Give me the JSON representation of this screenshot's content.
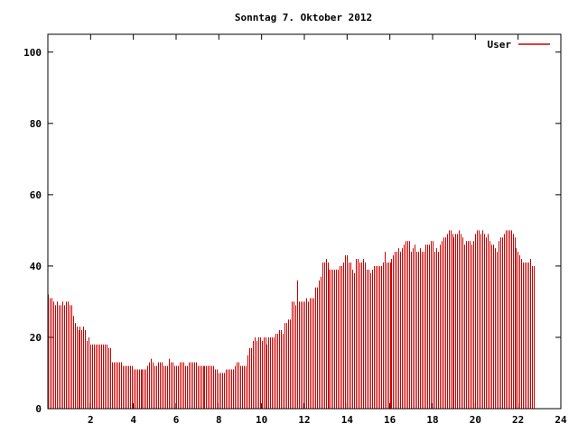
{
  "chart_data": {
    "type": "bar",
    "title": "Sonntag 7. Oktober 2012",
    "xlabel": "",
    "ylabel": "",
    "xlim": [
      0,
      24
    ],
    "ylim": [
      0,
      105
    ],
    "x_ticks": [
      2,
      4,
      6,
      8,
      10,
      12,
      14,
      16,
      18,
      20,
      22,
      24
    ],
    "y_ticks": [
      0,
      20,
      40,
      60,
      80,
      100
    ],
    "grid": false,
    "legend_position": "top-right",
    "series": [
      {
        "name": "User",
        "color": "#cc0000",
        "x_start": 0,
        "x_step": 0.0833,
        "values": [
          32,
          31,
          31,
          30,
          29,
          30,
          29,
          29,
          30,
          29,
          30,
          30,
          29,
          29,
          26,
          24,
          23,
          22,
          23,
          22,
          23,
          22,
          19,
          20,
          18,
          18,
          18,
          18,
          18,
          18,
          18,
          18,
          18,
          18,
          17,
          17,
          13,
          13,
          13,
          13,
          13,
          13,
          12,
          12,
          12,
          12,
          12,
          12,
          11,
          11,
          11,
          11,
          11,
          11,
          11,
          11,
          12,
          13,
          14,
          13,
          12,
          12,
          13,
          13,
          13,
          12,
          12,
          12,
          14,
          13,
          13,
          12,
          12,
          12,
          13,
          13,
          13,
          12,
          12,
          13,
          13,
          13,
          13,
          13,
          12,
          12,
          12,
          12,
          12,
          12,
          12,
          12,
          12,
          12,
          11,
          11,
          10,
          10,
          10,
          10,
          11,
          11,
          11,
          11,
          11,
          12,
          13,
          13,
          12,
          12,
          12,
          12,
          15,
          17,
          17,
          19,
          20,
          19,
          20,
          20,
          19,
          20,
          20,
          18,
          20,
          20,
          20,
          20,
          21,
          21,
          22,
          22,
          21,
          24,
          24,
          25,
          25,
          30,
          30,
          29,
          36,
          30,
          30,
          30,
          30,
          31,
          30,
          31,
          31,
          31,
          34,
          34,
          36,
          37,
          41,
          41,
          42,
          41,
          39,
          39,
          39,
          39,
          39,
          39,
          40,
          40,
          41,
          43,
          43,
          41,
          41,
          39,
          38,
          42,
          42,
          41,
          41,
          42,
          41,
          39,
          39,
          38,
          39,
          40,
          40,
          40,
          40,
          40,
          41,
          44,
          41,
          41,
          41,
          42,
          43,
          44,
          44,
          45,
          44,
          45,
          46,
          47,
          47,
          47,
          44,
          45,
          46,
          44,
          44,
          45,
          44,
          44,
          46,
          46,
          46,
          47,
          47,
          44,
          45,
          44,
          46,
          47,
          48,
          48,
          49,
          50,
          50,
          49,
          48,
          49,
          49,
          50,
          49,
          48,
          46,
          47,
          47,
          47,
          46,
          47,
          49,
          50,
          50,
          49,
          50,
          49,
          48,
          49,
          47,
          46,
          46,
          45,
          44,
          47,
          48,
          48,
          49,
          50,
          50,
          50,
          50,
          49,
          48,
          45,
          44,
          43,
          42,
          41,
          41,
          41,
          41,
          42,
          40,
          40
        ]
      }
    ]
  }
}
